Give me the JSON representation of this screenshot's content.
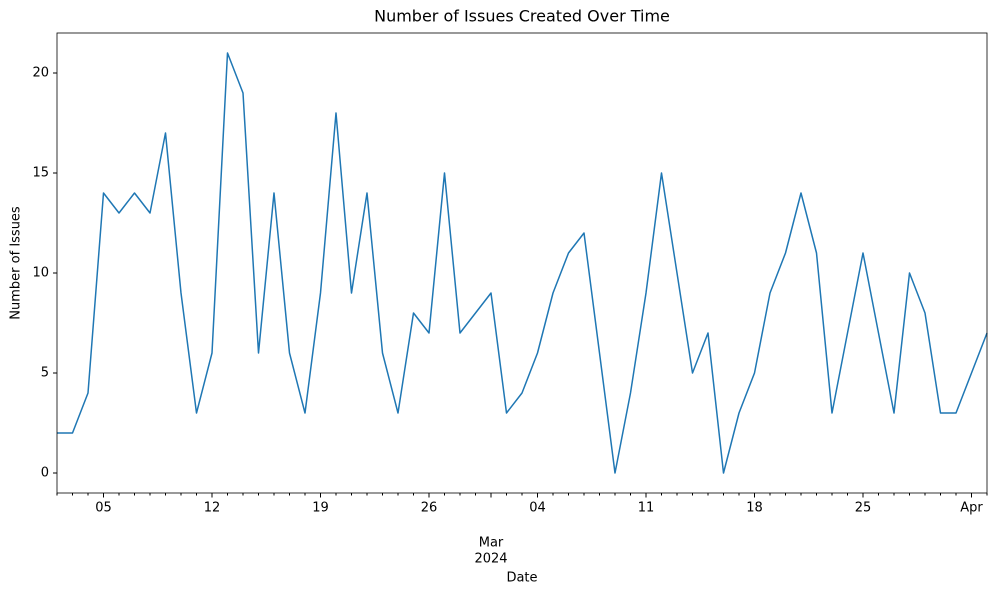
{
  "chart_data": {
    "type": "line",
    "title": "Number of Issues Created Over Time",
    "x_label": "Date",
    "y_label": "Number of Issues",
    "x": [
      "2024-02-02",
      "2024-02-03",
      "2024-02-04",
      "2024-02-05",
      "2024-02-06",
      "2024-02-07",
      "2024-02-08",
      "2024-02-09",
      "2024-02-10",
      "2024-02-11",
      "2024-02-12",
      "2024-02-13",
      "2024-02-14",
      "2024-02-15",
      "2024-02-16",
      "2024-02-17",
      "2024-02-18",
      "2024-02-19",
      "2024-02-20",
      "2024-02-21",
      "2024-02-22",
      "2024-02-23",
      "2024-02-24",
      "2024-02-25",
      "2024-02-26",
      "2024-02-27",
      "2024-02-28",
      "2024-02-29",
      "2024-03-01",
      "2024-03-02",
      "2024-03-03",
      "2024-03-04",
      "2024-03-05",
      "2024-03-06",
      "2024-03-07",
      "2024-03-08",
      "2024-03-09",
      "2024-03-10",
      "2024-03-11",
      "2024-03-12",
      "2024-03-13",
      "2024-03-14",
      "2024-03-15",
      "2024-03-16",
      "2024-03-17",
      "2024-03-18",
      "2024-03-19",
      "2024-03-20",
      "2024-03-21",
      "2024-03-22",
      "2024-03-23",
      "2024-03-24",
      "2024-03-25",
      "2024-03-26",
      "2024-03-27",
      "2024-03-28",
      "2024-03-29",
      "2024-03-30",
      "2024-03-31",
      "2024-04-01",
      "2024-04-02"
    ],
    "series": [
      {
        "name": "Number of Issues",
        "color": "#1f77b4",
        "values": [
          2,
          2,
          4,
          14,
          13,
          14,
          13,
          17,
          9,
          3,
          6,
          21,
          19,
          6,
          14,
          6,
          3,
          9,
          18,
          9,
          14,
          6,
          3,
          8,
          7,
          15,
          7,
          8,
          9,
          3,
          4,
          6,
          9,
          11,
          12,
          6,
          0,
          4,
          9,
          15,
          10,
          5,
          7,
          0,
          3,
          5,
          9,
          11,
          14,
          11,
          3,
          7,
          11,
          7,
          3,
          10,
          8,
          3,
          3,
          5,
          7
        ]
      }
    ],
    "xlim": [
      "2024-02-02",
      "2024-04-02"
    ],
    "xticks": [
      {
        "value": "2024-02-05",
        "label": "05"
      },
      {
        "value": "2024-02-12",
        "label": "12"
      },
      {
        "value": "2024-02-19",
        "label": "19"
      },
      {
        "value": "2024-02-26",
        "label": "26"
      },
      {
        "value": "2024-03-01",
        "label": "Mar",
        "sublabel": "2024"
      },
      {
        "value": "2024-03-04",
        "label": "04"
      },
      {
        "value": "2024-03-11",
        "label": "11"
      },
      {
        "value": "2024-03-18",
        "label": "18"
      },
      {
        "value": "2024-03-25",
        "label": "25"
      },
      {
        "value": "2024-04-01",
        "label": "Apr"
      }
    ],
    "ylim": [
      -1,
      22
    ],
    "yticks": [
      0,
      5,
      10,
      15,
      20
    ],
    "grid": false
  }
}
